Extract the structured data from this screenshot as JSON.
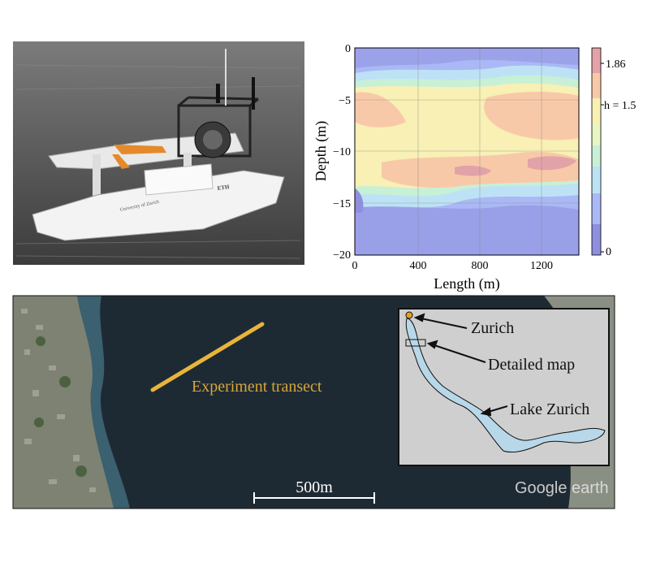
{
  "photo": {
    "hull_text_left": "University of Zurich",
    "hull_text_right": "ETH"
  },
  "chart_data": {
    "type": "heatmap",
    "xlabel": "Length (m)",
    "ylabel": "Depth (m)",
    "xlim": [
      0,
      1400
    ],
    "ylim": [
      -20,
      0
    ],
    "x_ticks": [
      "0",
      "400",
      "800",
      "1200"
    ],
    "y_ticks": [
      "0",
      "−5",
      "−10",
      "−15",
      "−20"
    ],
    "grid": true,
    "colorbar": {
      "range": [
        0,
        2
      ],
      "labels": [
        "1.86",
        "h = 1.5",
        "0"
      ],
      "label_values": [
        1.86,
        1.5,
        0
      ],
      "levels": 8,
      "colors": [
        "#8f8fe0",
        "#aab9f5",
        "#bde2f5",
        "#c8f0d6",
        "#e8f5c4",
        "#f8f0b4",
        "#f8c9a8",
        "#e2a3a8"
      ]
    },
    "regions": [
      {
        "depth_range": [
          0,
          -3
        ],
        "description_level": 2
      },
      {
        "depth_range": [
          -3,
          -7
        ],
        "description_level": 5
      },
      {
        "depth_range": [
          -7,
          -14
        ],
        "description_level": 6
      },
      {
        "depth_range": [
          -14,
          -20
        ],
        "description_level": 1
      }
    ]
  },
  "map": {
    "transect_label": "Experiment transect",
    "scale_label": "500m",
    "inset_labels": {
      "zurich": "Zurich",
      "detailed_map": "Detailed map",
      "lake": "Lake Zurich"
    },
    "watermark": "Google earth",
    "colors": {
      "water": "#1e2a33",
      "transect": "#e8b53a",
      "lake": "#b8d8ea",
      "inset_bg": "#cfcfcf"
    }
  }
}
